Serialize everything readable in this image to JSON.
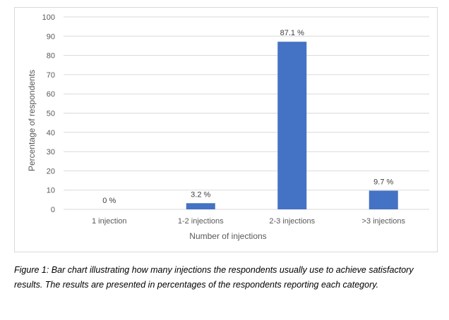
{
  "chart_data": {
    "type": "bar",
    "categories": [
      "1 injection",
      "1-2 injections",
      "2-3 injections",
      ">3 injections"
    ],
    "values": [
      0,
      3.2,
      87.1,
      9.7
    ],
    "data_labels": [
      "0 %",
      "3.2 %",
      "87.1 %",
      "9.7 %"
    ],
    "xlabel": "Number of injections",
    "ylabel": "Percentage of respondents",
    "ylim": [
      0,
      100
    ],
    "yticks": [
      0,
      10,
      20,
      30,
      40,
      50,
      60,
      70,
      80,
      90,
      100
    ],
    "grid": true,
    "bar_color": "#4472c4",
    "gridline_color": "#d9d9d9"
  },
  "caption": "Figure 1: Bar chart illustrating how many injections the respondents usually use to achieve satisfactory results. The results are presented in percentages of the respondents reporting each category."
}
